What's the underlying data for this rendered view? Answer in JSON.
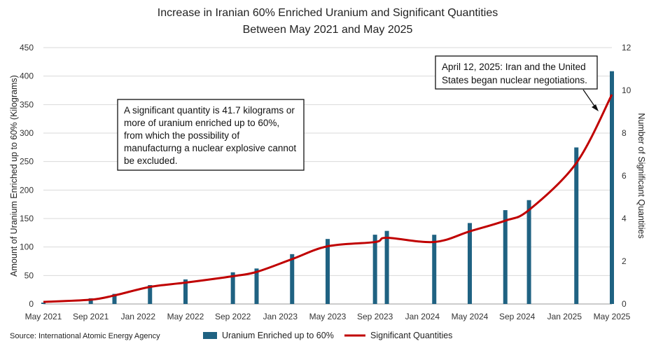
{
  "chart_data": {
    "type": "bar",
    "title": [
      "Increase in Iranian 60% Enriched Uranium and Significant Quantities",
      "Between May 2021 and May 2025"
    ],
    "ylabel": "Amount of Uranium Enriched up to 60% (Kilograms)",
    "y2label": "Number of Significant  Quantities",
    "ylim": [
      0,
      450
    ],
    "y2lim": [
      0,
      12
    ],
    "yticks": [
      0,
      50,
      100,
      150,
      200,
      250,
      300,
      350,
      400,
      450
    ],
    "y2ticks": [
      0,
      2,
      4,
      6,
      8,
      10,
      12
    ],
    "xlim": [
      "2021-05",
      "2025-05"
    ],
    "xtick_labels": [
      "May 2021",
      "Sep 2021",
      "Jan 2022",
      "May 2022",
      "Sep 2022",
      "Jan 2023",
      "May 2023",
      "Sep 2023",
      "Jan 2024",
      "May 2024",
      "Sep 2024",
      "Jan 2025",
      "May 2025"
    ],
    "colors": {
      "bars": "#1f6282",
      "line": "#c00000"
    },
    "x": [
      "2021-05",
      "2021-09",
      "2021-11",
      "2022-02",
      "2022-05",
      "2022-09",
      "2022-11",
      "2023-02",
      "2023-05",
      "2023-09",
      "2023-10",
      "2024-02",
      "2024-05",
      "2024-08",
      "2024-10",
      "2025-02",
      "2025-05"
    ],
    "series": [
      {
        "name": "Uranium Enriched up to 60%",
        "type": "bar",
        "values": [
          2.4,
          10,
          17.7,
          33.2,
          43.1,
          55.6,
          62.3,
          87.5,
          114.1,
          121.6,
          128.3,
          121.5,
          142.1,
          164.7,
          182.3,
          274.8,
          408.6
        ]
      },
      {
        "name": "Significant Quantities",
        "type": "line",
        "axis": "right",
        "values": [
          0.1,
          0.2,
          0.4,
          0.8,
          1.0,
          1.3,
          1.5,
          2.1,
          2.7,
          2.9,
          3.1,
          2.9,
          3.4,
          3.9,
          4.4,
          6.6,
          9.8
        ]
      }
    ],
    "annotations": [
      "A significant quantity is 41.7 kilograms or more of uranium enriched up to 60%, from which the possibility of manufacturng a nuclear explosive cannot be excluded.",
      "April 12, 2025: Iran and the United States began nuclear negotiations."
    ],
    "legend": "bottom",
    "grid": "horizontal"
  },
  "annotation_lines": {
    "left": [
      "A significant quantity is 41.7 kilograms or",
      "more of uranium enriched up to 60%,",
      "from which the possibility of",
      "manufacturng a nuclear explosive cannot",
      "be excluded."
    ],
    "right": [
      "April 12, 2025: Iran and the United",
      "States began nuclear negotiations."
    ]
  },
  "source": "Source: International Atomic Energy Agency"
}
